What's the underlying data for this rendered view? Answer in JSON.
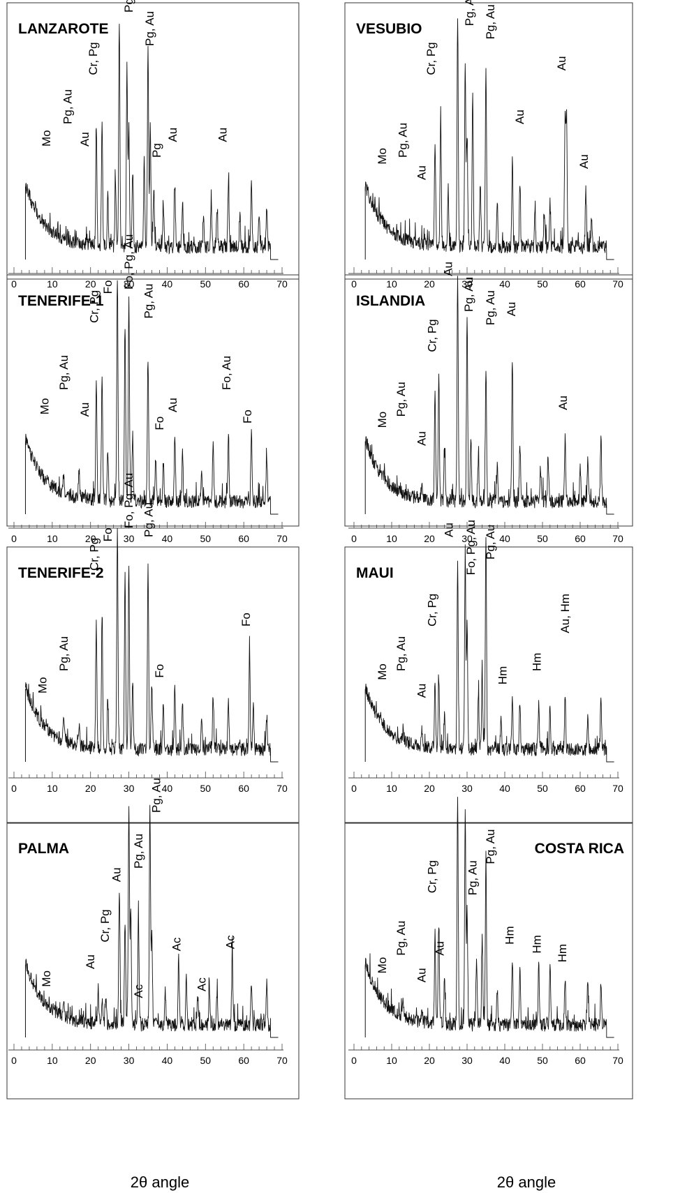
{
  "chart_data": [
    {
      "type": "line",
      "title": "LANZAROTE",
      "xlim": [
        0,
        70
      ],
      "xticks": [
        0,
        10,
        20,
        30,
        40,
        50,
        60,
        70
      ],
      "peaks": [
        [
          21.5,
          0.52
        ],
        [
          23,
          0.55
        ],
        [
          24.5,
          0.22
        ],
        [
          26.5,
          0.32
        ],
        [
          27.5,
          1.0
        ],
        [
          29.5,
          0.8
        ],
        [
          30,
          0.55
        ],
        [
          31,
          0.35
        ],
        [
          34,
          0.4
        ],
        [
          35,
          0.9
        ],
        [
          35.6,
          0.55
        ],
        [
          36.5,
          0.25
        ],
        [
          39,
          0.18
        ],
        [
          42,
          0.28
        ],
        [
          44,
          0.2
        ],
        [
          49.5,
          0.15
        ],
        [
          51.5,
          0.2
        ],
        [
          53,
          0.15
        ],
        [
          56,
          0.3
        ],
        [
          59,
          0.15
        ],
        [
          62,
          0.3
        ],
        [
          64,
          0.15
        ],
        [
          66,
          0.17
        ]
      ],
      "labels": [
        {
          "t": "Mo",
          "x": 9.5,
          "y": 0.5
        },
        {
          "t": "Pg, Au",
          "x": 15,
          "y": 0.6
        },
        {
          "t": "Au",
          "x": 19.5,
          "y": 0.5
        },
        {
          "t": "Cr, Pg",
          "x": 21.7,
          "y": 0.82
        },
        {
          "t": "Au",
          "x": 25.8,
          "y": 1.27
        },
        {
          "t": "Pg, Au",
          "x": 31,
          "y": 1.1
        },
        {
          "t": "Pg, Au",
          "x": 36.5,
          "y": 0.95
        },
        {
          "t": "Pg",
          "x": 38.3,
          "y": 0.45
        },
        {
          "t": "Au",
          "x": 42.5,
          "y": 0.52
        },
        {
          "t": "Au",
          "x": 55.5,
          "y": 0.52
        }
      ]
    },
    {
      "type": "line",
      "title": "VESUBIO",
      "xlim": [
        0,
        70
      ],
      "xticks": [
        0,
        10,
        20,
        30,
        40,
        50,
        60,
        70
      ],
      "peaks": [
        [
          21.5,
          0.48
        ],
        [
          23,
          0.6
        ],
        [
          25,
          0.25
        ],
        [
          27.5,
          1.0
        ],
        [
          29.5,
          0.82
        ],
        [
          30,
          0.5
        ],
        [
          31.5,
          0.7
        ],
        [
          33.5,
          0.3
        ],
        [
          35,
          0.8
        ],
        [
          38,
          0.2
        ],
        [
          42,
          0.38
        ],
        [
          44,
          0.28
        ],
        [
          48,
          0.18
        ],
        [
          50.5,
          0.15
        ],
        [
          52,
          0.2
        ],
        [
          56,
          0.6
        ],
        [
          56.4,
          0.58
        ],
        [
          61.5,
          0.25
        ],
        [
          63,
          0.12
        ]
      ],
      "labels": [
        {
          "t": "Mo",
          "x": 8.5,
          "y": 0.42
        },
        {
          "t": "Pg, Au",
          "x": 14,
          "y": 0.45
        },
        {
          "t": "Au",
          "x": 19,
          "y": 0.35
        },
        {
          "t": "Cr, Pg",
          "x": 21.5,
          "y": 0.82
        },
        {
          "t": "Au",
          "x": 25.9,
          "y": 1.27
        },
        {
          "t": "Pg, Au",
          "x": 31.7,
          "y": 1.04
        },
        {
          "t": "Pg, Au",
          "x": 37.2,
          "y": 0.98
        },
        {
          "t": "Au",
          "x": 45,
          "y": 0.6
        },
        {
          "t": "Au",
          "x": 56.1,
          "y": 0.84
        },
        {
          "t": "Au",
          "x": 62,
          "y": 0.4
        }
      ]
    },
    {
      "type": "line",
      "title": "TENERIFE-1",
      "xlim": [
        0,
        70
      ],
      "xticks": [
        0,
        10,
        20,
        30,
        40,
        50,
        60,
        70
      ],
      "peaks": [
        [
          13,
          0.1
        ],
        [
          17,
          0.12
        ],
        [
          21.5,
          0.55
        ],
        [
          23,
          0.58
        ],
        [
          24.5,
          0.22
        ],
        [
          27,
          1.0
        ],
        [
          29,
          0.8
        ],
        [
          30,
          0.9
        ],
        [
          31,
          0.3
        ],
        [
          35,
          0.65
        ],
        [
          37,
          0.2
        ],
        [
          39,
          0.18
        ],
        [
          42,
          0.28
        ],
        [
          44,
          0.22
        ],
        [
          49,
          0.15
        ],
        [
          52,
          0.25
        ],
        [
          56,
          0.28
        ],
        [
          62,
          0.3
        ],
        [
          66,
          0.2
        ]
      ],
      "labels": [
        {
          "t": "Mo",
          "x": 9,
          "y": 0.44
        },
        {
          "t": "Pg, Au",
          "x": 14,
          "y": 0.55
        },
        {
          "t": "Au",
          "x": 19.5,
          "y": 0.43
        },
        {
          "t": "Cr, Pg",
          "x": 22,
          "y": 0.85
        },
        {
          "t": "Fo",
          "x": 25.5,
          "y": 0.98
        },
        {
          "t": "Fo, Pg, Au",
          "x": 31,
          "y": 1.0
        },
        {
          "t": "Pg, Au",
          "x": 36.2,
          "y": 0.87
        },
        {
          "t": "Fo",
          "x": 39,
          "y": 0.37
        },
        {
          "t": "Au",
          "x": 42.5,
          "y": 0.45
        },
        {
          "t": "Fo, Au",
          "x": 56.5,
          "y": 0.55
        },
        {
          "t": "Fo",
          "x": 62,
          "y": 0.4
        }
      ]
    },
    {
      "type": "line",
      "title": "ISLANDIA",
      "xlim": [
        0,
        70
      ],
      "xticks": [
        0,
        10,
        20,
        30,
        40,
        50,
        60,
        70
      ],
      "peaks": [
        [
          18,
          0.08
        ],
        [
          21.5,
          0.5
        ],
        [
          22.5,
          0.55
        ],
        [
          24,
          0.25
        ],
        [
          27.5,
          1.0
        ],
        [
          30,
          0.8
        ],
        [
          31,
          0.3
        ],
        [
          33,
          0.2
        ],
        [
          35,
          0.6
        ],
        [
          38,
          0.15
        ],
        [
          42,
          0.65
        ],
        [
          44,
          0.25
        ],
        [
          49.5,
          0.15
        ],
        [
          51.5,
          0.2
        ],
        [
          56,
          0.28
        ],
        [
          60,
          0.15
        ],
        [
          62,
          0.18
        ],
        [
          65.5,
          0.3
        ]
      ],
      "labels": [
        {
          "t": "Mo",
          "x": 8.5,
          "y": 0.38
        },
        {
          "t": "Pg, Au",
          "x": 13.5,
          "y": 0.43
        },
        {
          "t": "Au",
          "x": 19,
          "y": 0.3
        },
        {
          "t": "Cr, Pg",
          "x": 21.8,
          "y": 0.72
        },
        {
          "t": "Au",
          "x": 26,
          "y": 1.06
        },
        {
          "t": "Pg, Au",
          "x": 31.5,
          "y": 0.9
        },
        {
          "t": "Pg, Au",
          "x": 37.2,
          "y": 0.84
        },
        {
          "t": "Au",
          "x": 42.8,
          "y": 0.88
        },
        {
          "t": "Au",
          "x": 56.5,
          "y": 0.46
        }
      ]
    },
    {
      "type": "line",
      "title": "TENERIFE-2",
      "xlim": [
        0,
        70
      ],
      "xticks": [
        0,
        10,
        20,
        30,
        40,
        50,
        60,
        70
      ],
      "peaks": [
        [
          13,
          0.1
        ],
        [
          17,
          0.1
        ],
        [
          21.5,
          0.55
        ],
        [
          23,
          0.58
        ],
        [
          24.5,
          0.22
        ],
        [
          27,
          1.0
        ],
        [
          29,
          0.8
        ],
        [
          30,
          0.82
        ],
        [
          31,
          0.3
        ],
        [
          35,
          0.82
        ],
        [
          36,
          0.3
        ],
        [
          39,
          0.2
        ],
        [
          42,
          0.28
        ],
        [
          44,
          0.22
        ],
        [
          49,
          0.15
        ],
        [
          52,
          0.25
        ],
        [
          56,
          0.2
        ],
        [
          61.5,
          0.45
        ],
        [
          62.5,
          0.2
        ],
        [
          66,
          0.15
        ]
      ],
      "labels": [
        {
          "t": "Mo",
          "x": 8.5,
          "y": 0.3
        },
        {
          "t": "Pg, Au",
          "x": 14,
          "y": 0.4
        },
        {
          "t": "Cr, Pg",
          "x": 22,
          "y": 0.85
        },
        {
          "t": "Fo",
          "x": 25.5,
          "y": 0.98
        },
        {
          "t": "Fo, Pg, Au",
          "x": 31,
          "y": 1.04
        },
        {
          "t": "Pg, Au",
          "x": 36.2,
          "y": 1.0
        },
        {
          "t": "Fo",
          "x": 39,
          "y": 0.37
        },
        {
          "t": "Fo",
          "x": 61.6,
          "y": 0.6
        }
      ]
    },
    {
      "type": "line",
      "title": "MAUI",
      "xlim": [
        0,
        70
      ],
      "xticks": [
        0,
        10,
        20,
        30,
        40,
        50,
        60,
        70
      ],
      "peaks": [
        [
          13,
          0.05
        ],
        [
          18,
          0.08
        ],
        [
          21.5,
          0.3
        ],
        [
          22.5,
          0.32
        ],
        [
          24,
          0.15
        ],
        [
          27.5,
          0.82
        ],
        [
          29.5,
          0.86
        ],
        [
          30,
          0.55
        ],
        [
          33,
          0.25
        ],
        [
          34,
          0.38
        ],
        [
          35,
          0.95
        ],
        [
          39,
          0.15
        ],
        [
          42,
          0.25
        ],
        [
          44,
          0.2
        ],
        [
          49,
          0.2
        ],
        [
          52,
          0.18
        ],
        [
          56,
          0.25
        ],
        [
          62,
          0.15
        ],
        [
          65.5,
          0.22
        ]
      ],
      "labels": [
        {
          "t": "Mo",
          "x": 8.5,
          "y": 0.36
        },
        {
          "t": "Pg, Au",
          "x": 13.5,
          "y": 0.4
        },
        {
          "t": "Au",
          "x": 19,
          "y": 0.28
        },
        {
          "t": "Cr, Pg",
          "x": 21.8,
          "y": 0.6
        },
        {
          "t": "Au",
          "x": 26.2,
          "y": 1.0
        },
        {
          "t": "Fo, Pg, Au",
          "x": 32,
          "y": 0.83
        },
        {
          "t": "Pg, Au",
          "x": 37.2,
          "y": 0.9
        },
        {
          "t": "Hm",
          "x": 40.5,
          "y": 0.34
        },
        {
          "t": "Hm",
          "x": 49.5,
          "y": 0.4
        },
        {
          "t": "Au, Hm",
          "x": 57,
          "y": 0.57
        }
      ]
    },
    {
      "type": "line",
      "title": "PALMA",
      "xlim": [
        0,
        70
      ],
      "xticks": [
        0,
        10,
        20,
        30,
        40,
        50,
        60,
        70
      ],
      "peaks": [
        [
          13,
          0.05
        ],
        [
          22,
          0.15
        ],
        [
          23,
          0.12
        ],
        [
          24,
          0.12
        ],
        [
          27.5,
          0.6
        ],
        [
          29,
          0.45
        ],
        [
          30,
          1.0
        ],
        [
          30.5,
          0.5
        ],
        [
          32.5,
          0.5
        ],
        [
          35.5,
          0.98
        ],
        [
          36,
          0.4
        ],
        [
          39.5,
          0.15
        ],
        [
          43,
          0.3
        ],
        [
          45,
          0.2
        ],
        [
          48,
          0.12
        ],
        [
          51,
          0.15
        ],
        [
          53,
          0.15
        ],
        [
          57,
          0.32
        ],
        [
          62,
          0.2
        ],
        [
          66,
          0.18
        ]
      ],
      "labels": [
        {
          "t": "Mo",
          "x": 9.5,
          "y": 0.22
        },
        {
          "t": "Au",
          "x": 21,
          "y": 0.3
        },
        {
          "t": "Cr, Pg",
          "x": 24.8,
          "y": 0.42
        },
        {
          "t": "Au",
          "x": 27.8,
          "y": 0.69
        },
        {
          "t": "Pg, Au",
          "x": 33.5,
          "y": 0.75
        },
        {
          "t": "Pg, Au",
          "x": 38.2,
          "y": 1.0
        },
        {
          "t": "Ac",
          "x": 33.5,
          "y": 0.17
        },
        {
          "t": "Ac",
          "x": 43.5,
          "y": 0.38
        },
        {
          "t": "Ac",
          "x": 50,
          "y": 0.2
        },
        {
          "t": "Ac",
          "x": 57.5,
          "y": 0.39
        }
      ]
    },
    {
      "type": "line",
      "title": "COSTA RICA",
      "xlim": [
        0,
        70
      ],
      "xticks": [
        0,
        10,
        20,
        30,
        40,
        50,
        60,
        70
      ],
      "peaks": [
        [
          13,
          0.08
        ],
        [
          18,
          0.06
        ],
        [
          21.5,
          0.4
        ],
        [
          22.5,
          0.45
        ],
        [
          24,
          0.2
        ],
        [
          27.5,
          1.0
        ],
        [
          29.5,
          0.96
        ],
        [
          30,
          0.5
        ],
        [
          32.5,
          0.3
        ],
        [
          34,
          0.4
        ],
        [
          35,
          0.75
        ],
        [
          38,
          0.15
        ],
        [
          42,
          0.3
        ],
        [
          44,
          0.25
        ],
        [
          49,
          0.28
        ],
        [
          52,
          0.28
        ],
        [
          56,
          0.2
        ],
        [
          62,
          0.2
        ],
        [
          65.5,
          0.18
        ]
      ],
      "labels": [
        {
          "t": "Mo",
          "x": 8.5,
          "y": 0.28
        },
        {
          "t": "Pg, Au",
          "x": 13.5,
          "y": 0.36
        },
        {
          "t": "Au",
          "x": 19,
          "y": 0.24
        },
        {
          "t": "Cr, Pg",
          "x": 21.8,
          "y": 0.64
        },
        {
          "t": "Au",
          "x": 23.8,
          "y": 0.36
        },
        {
          "t": "Pg, Au",
          "x": 32.5,
          "y": 0.63
        },
        {
          "t": "Pg, Au",
          "x": 37.2,
          "y": 0.77
        },
        {
          "t": "Hm",
          "x": 42.3,
          "y": 0.41
        },
        {
          "t": "Hm",
          "x": 49.5,
          "y": 0.37
        },
        {
          "t": "Hm",
          "x": 56.3,
          "y": 0.33
        }
      ]
    }
  ],
  "axis": {
    "xlabel": "2θ angle"
  }
}
